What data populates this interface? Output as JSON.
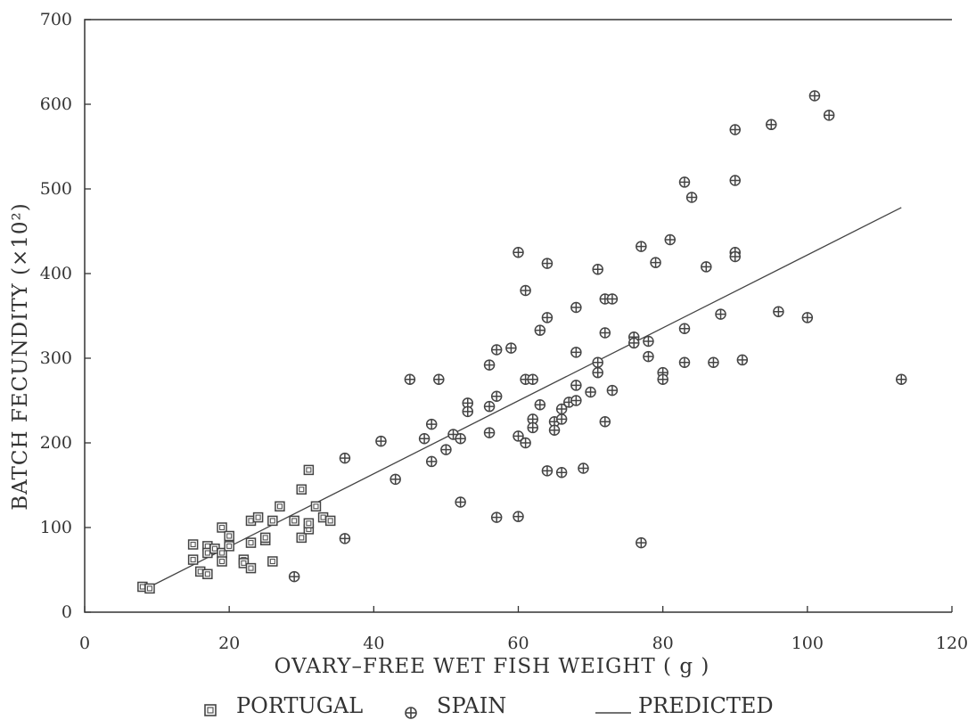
{
  "chart_data": {
    "type": "scatter",
    "title": "",
    "xlabel": "OVARY–FREE WET FISH WEIGHT ( g )",
    "ylabel": "BATCH FECUNDITY (×10²)",
    "xlim": [
      0,
      120
    ],
    "ylim": [
      0,
      700
    ],
    "xticks": [
      "0",
      "20",
      "40",
      "60",
      "80",
      "100",
      "120"
    ],
    "yticks": [
      "0",
      "100",
      "200",
      "300",
      "400",
      "500",
      "600",
      "700"
    ],
    "grid": false,
    "legend_position": "bottom",
    "series": [
      {
        "name": "PORTUGAL",
        "marker": "boxed-square",
        "points": [
          [
            8,
            30
          ],
          [
            9,
            28
          ],
          [
            15,
            80
          ],
          [
            15,
            62
          ],
          [
            16,
            48
          ],
          [
            17,
            45
          ],
          [
            17,
            78
          ],
          [
            17,
            70
          ],
          [
            18,
            75
          ],
          [
            19,
            100
          ],
          [
            19,
            70
          ],
          [
            19,
            60
          ],
          [
            20,
            78
          ],
          [
            20,
            90
          ],
          [
            22,
            62
          ],
          [
            22,
            58
          ],
          [
            23,
            52
          ],
          [
            23,
            82
          ],
          [
            23,
            108
          ],
          [
            24,
            112
          ],
          [
            25,
            85
          ],
          [
            25,
            88
          ],
          [
            26,
            108
          ],
          [
            26,
            60
          ],
          [
            27,
            125
          ],
          [
            29,
            108
          ],
          [
            30,
            88
          ],
          [
            30,
            145
          ],
          [
            31,
            168
          ],
          [
            31,
            98
          ],
          [
            31,
            105
          ],
          [
            32,
            125
          ],
          [
            33,
            112
          ],
          [
            34,
            108
          ]
        ]
      },
      {
        "name": "SPAIN",
        "marker": "circled-cross",
        "points": [
          [
            29,
            42
          ],
          [
            36,
            182
          ],
          [
            36,
            87
          ],
          [
            41,
            202
          ],
          [
            43,
            157
          ],
          [
            45,
            275
          ],
          [
            47,
            205
          ],
          [
            48,
            222
          ],
          [
            48,
            178
          ],
          [
            49,
            275
          ],
          [
            50,
            192
          ],
          [
            51,
            210
          ],
          [
            52,
            205
          ],
          [
            52,
            130
          ],
          [
            53,
            247
          ],
          [
            53,
            237
          ],
          [
            56,
            243
          ],
          [
            56,
            212
          ],
          [
            56,
            292
          ],
          [
            57,
            310
          ],
          [
            57,
            255
          ],
          [
            57,
            112
          ],
          [
            59,
            312
          ],
          [
            60,
            425
          ],
          [
            60,
            208
          ],
          [
            60,
            113
          ],
          [
            61,
            200
          ],
          [
            61,
            380
          ],
          [
            61,
            275
          ],
          [
            62,
            275
          ],
          [
            62,
            228
          ],
          [
            62,
            218
          ],
          [
            63,
            333
          ],
          [
            63,
            245
          ],
          [
            64,
            412
          ],
          [
            64,
            348
          ],
          [
            64,
            167
          ],
          [
            65,
            225
          ],
          [
            65,
            215
          ],
          [
            66,
            240
          ],
          [
            66,
            228
          ],
          [
            66,
            165
          ],
          [
            67,
            248
          ],
          [
            68,
            360
          ],
          [
            68,
            307
          ],
          [
            68,
            268
          ],
          [
            68,
            250
          ],
          [
            69,
            170
          ],
          [
            70,
            260
          ],
          [
            71,
            405
          ],
          [
            71,
            295
          ],
          [
            71,
            283
          ],
          [
            72,
            370
          ],
          [
            72,
            330
          ],
          [
            72,
            225
          ],
          [
            73,
            370
          ],
          [
            73,
            262
          ],
          [
            76,
            325
          ],
          [
            76,
            318
          ],
          [
            77,
            432
          ],
          [
            77,
            82
          ],
          [
            78,
            320
          ],
          [
            78,
            302
          ],
          [
            79,
            413
          ],
          [
            80,
            283
          ],
          [
            80,
            275
          ],
          [
            81,
            440
          ],
          [
            83,
            508
          ],
          [
            83,
            335
          ],
          [
            83,
            295
          ],
          [
            84,
            490
          ],
          [
            86,
            408
          ],
          [
            87,
            295
          ],
          [
            88,
            352
          ],
          [
            90,
            570
          ],
          [
            90,
            510
          ],
          [
            90,
            425
          ],
          [
            90,
            420
          ],
          [
            91,
            298
          ],
          [
            95,
            576
          ],
          [
            96,
            355
          ],
          [
            100,
            348
          ],
          [
            101,
            610
          ],
          [
            103,
            587
          ],
          [
            113,
            275
          ]
        ]
      },
      {
        "name": "PREDICTED",
        "marker": "line",
        "points": [
          [
            9,
            30
          ],
          [
            113,
            478
          ]
        ]
      }
    ]
  }
}
